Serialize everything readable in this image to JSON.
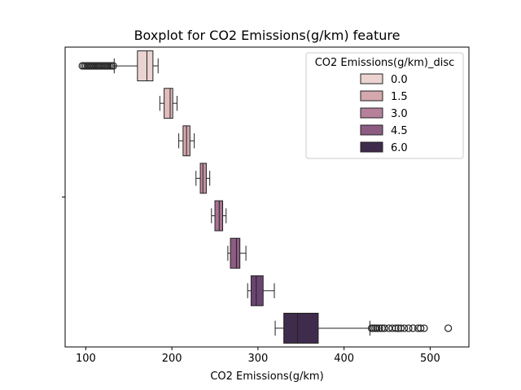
{
  "chart_data": {
    "type": "boxplot",
    "title": "Boxplot for CO2 Emissions(g/km) feature",
    "xlabel": "CO2 Emissions(g/km)",
    "ylabel": "",
    "xlim": [
      76,
      545
    ],
    "x_ticks": [
      100,
      200,
      300,
      400,
      500
    ],
    "orientation": "horizontal",
    "legend": {
      "title": "CO2 Emissions(g/km)_disc",
      "placement": "top-right",
      "entries": [
        {
          "label": "0.0",
          "color": "#ead3d1"
        },
        {
          "label": "1.5",
          "color": "#d4a8ad"
        },
        {
          "label": "3.0",
          "color": "#b6809a"
        },
        {
          "label": "4.5",
          "color": "#8d5c83"
        },
        {
          "label": "6.0",
          "color": "#3f2b4b"
        }
      ]
    },
    "boxes": [
      {
        "color": "#ead3d1",
        "whisker_low": 133,
        "q1": 160,
        "median": 171,
        "q3": 178,
        "whisker_high": 184,
        "outliers": [
          96,
          98,
          100,
          102,
          104,
          106,
          108,
          110,
          112,
          114,
          116,
          118,
          120,
          122,
          124,
          126,
          128,
          130,
          132
        ]
      },
      {
        "color": "#e0bcbd",
        "whisker_low": 186,
        "q1": 191,
        "median": 198,
        "q3": 201,
        "whisker_high": 206,
        "outliers": []
      },
      {
        "color": "#d4a8ad",
        "whisker_low": 208,
        "q1": 213,
        "median": 217,
        "q3": 221,
        "whisker_high": 226,
        "outliers": []
      },
      {
        "color": "#c290a2",
        "whisker_low": 228,
        "q1": 233,
        "median": 236,
        "q3": 240,
        "whisker_high": 244,
        "outliers": []
      },
      {
        "color": "#a97192",
        "whisker_low": 246,
        "q1": 250,
        "median": 255,
        "q3": 259,
        "whisker_high": 263,
        "outliers": []
      },
      {
        "color": "#8d5c83",
        "whisker_low": 265,
        "q1": 268,
        "median": 275,
        "q3": 279,
        "whisker_high": 286,
        "outliers": []
      },
      {
        "color": "#6a4570",
        "whisker_low": 288,
        "q1": 292,
        "median": 298,
        "q3": 306,
        "whisker_high": 319,
        "outliers": []
      },
      {
        "color": "#3f2b4b",
        "whisker_low": 320,
        "q1": 330,
        "median": 346,
        "q3": 370,
        "whisker_high": 430,
        "outliers": [
          432,
          434,
          436,
          438,
          441,
          444,
          447,
          452,
          456,
          460,
          463,
          466,
          470,
          475,
          480,
          486,
          489,
          493,
          521
        ]
      }
    ]
  }
}
